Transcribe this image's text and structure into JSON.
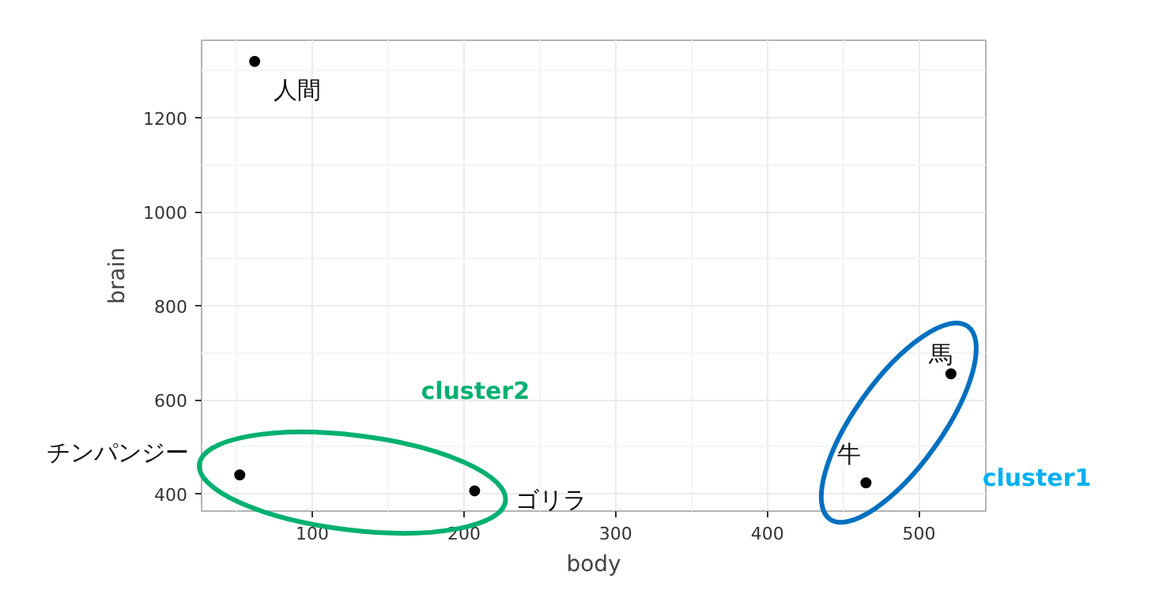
{
  "chart_data": {
    "type": "scatter",
    "xlabel": "body",
    "ylabel": "brain",
    "x": [
      62,
      52.16,
      207,
      465,
      521
    ],
    "values": [
      1320,
      440,
      406,
      423,
      655
    ],
    "color": "#000000",
    "marker": "circle",
    "grid": true,
    "xlim": [
      27,
      544
    ],
    "ylim": [
      363,
      1365
    ],
    "xticks": [
      100,
      200,
      300,
      400,
      500
    ],
    "yticks": [
      400,
      600,
      800,
      1000,
      1200
    ],
    "annotations": [
      {
        "text": "人間",
        "x": 62,
        "y": 1320
      },
      {
        "text": "チンパンジー",
        "x": 52.16,
        "y": 440
      },
      {
        "text": "ゴリラ",
        "x": 207,
        "y": 406
      },
      {
        "text": "牛",
        "x": 465,
        "y": 423
      },
      {
        "text": "馬",
        "x": 521,
        "y": 655
      },
      "cluster2",
      "cluster1"
    ]
  }
}
